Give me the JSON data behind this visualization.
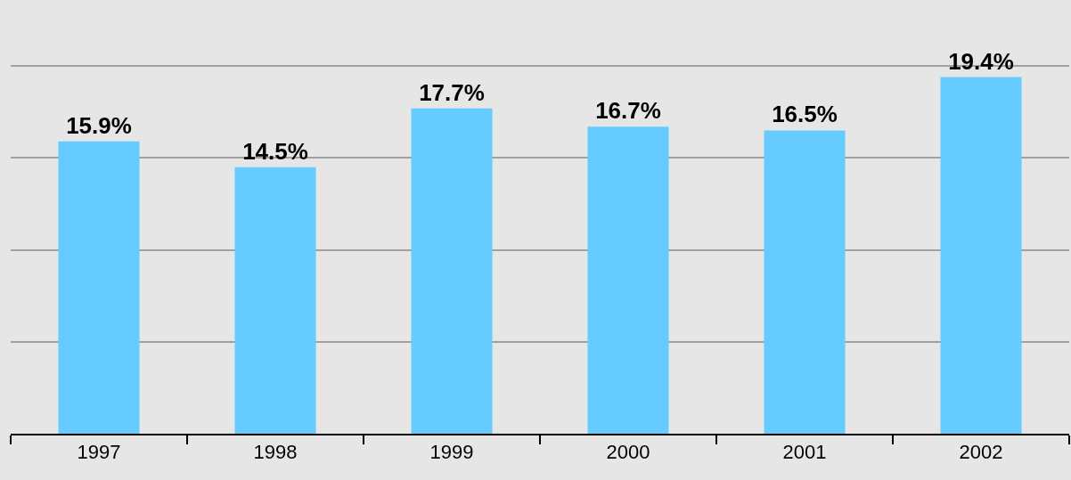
{
  "chart_data": {
    "type": "bar",
    "categories": [
      "1997",
      "1998",
      "1999",
      "2000",
      "2001",
      "2002"
    ],
    "values": [
      15.9,
      14.5,
      17.7,
      16.7,
      16.5,
      19.4
    ],
    "color": "#66ccff",
    "data_labels": true,
    "value_labels": [
      "15.9%",
      "14.5%",
      "17.7%",
      "16.7%",
      "16.5%",
      "19.4%"
    ],
    "ylim": [
      0,
      23.5
    ],
    "yticks": [
      {
        "value": 0,
        "label": null
      },
      {
        "value": 5,
        "label": null
      },
      {
        "value": 10,
        "label": null
      },
      {
        "value": 15,
        "label": null
      },
      {
        "value": 20,
        "label": null
      }
    ],
    "grid": "y",
    "tick_labels": "x"
  }
}
